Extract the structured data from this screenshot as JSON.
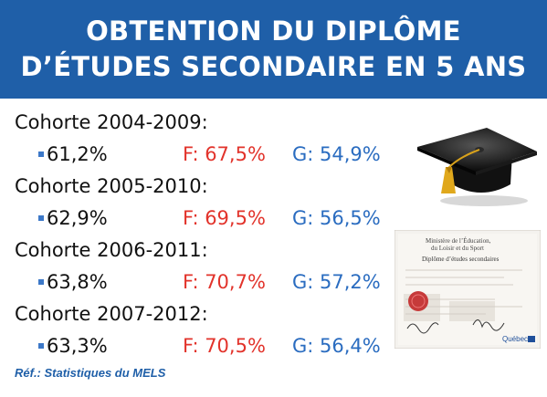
{
  "banner": {
    "line1": "OBTENTION DU DIPLÔME",
    "line2": "D’ÉTUDES SECONDAIRE EN 5 ANS",
    "background": "#1f5fa8"
  },
  "colors": {
    "girls": "#e2332b",
    "boys": "#2a6cc0",
    "bullet": "#3c78c8"
  },
  "cohorts": [
    {
      "title": "Cohorte 2004-2009:",
      "total": "61,2%",
      "girls": "F: 67,5%",
      "boys": "G: 54,9%"
    },
    {
      "title": "Cohorte 2005-2010:",
      "total": "62,9%",
      "girls": "F: 69,5%",
      "boys": "G: 56,5%"
    },
    {
      "title": "Cohorte 2006-2011:",
      "total": "63,8%",
      "girls": "F: 70,7%",
      "boys": "G: 57,2%"
    },
    {
      "title": "Cohorte 2007-2012:",
      "total": "63,3%",
      "girls": "F: 70,5%",
      "boys": "G: 56,4%"
    }
  ],
  "reference": "Réf.: Statistiques du MELS",
  "images": {
    "cap": "graduation-cap-icon",
    "diploma": {
      "ministry_line1": "Ministère de l’Éducation,",
      "ministry_line2": "du Loisir et du Sport",
      "document_title": "Diplôme d’études secondaires",
      "logo_text": "Québec"
    }
  }
}
